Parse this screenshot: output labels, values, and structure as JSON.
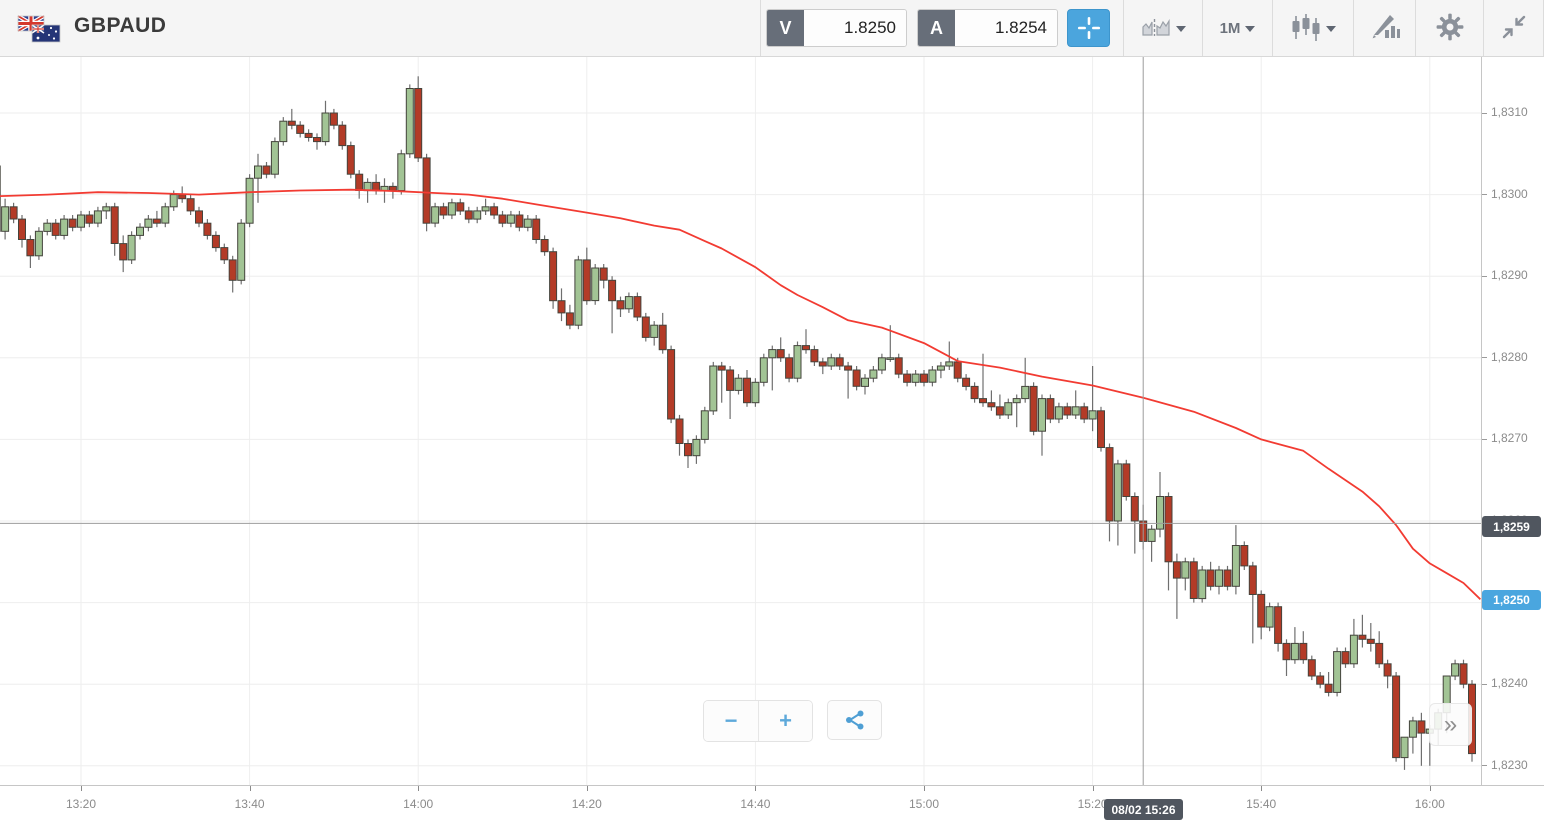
{
  "header": {
    "symbol": "GBPAUD",
    "sell_label": "V",
    "sell_price": "1.8250",
    "buy_label": "A",
    "buy_price": "1.8254",
    "timeframe": "1M"
  },
  "icons": {
    "flag": "uk-australia-flag-icon",
    "crosshair_tool": "crosshair-icon",
    "compare": "compare-charts-icon",
    "timeframe_caret": "chevron-down-icon",
    "chart_type": "candlestick-type-icon",
    "drawing": "drawing-tools-icon",
    "settings": "gear-icon",
    "collapse": "collapse-icon",
    "zoom_out": "minus-icon",
    "zoom_in": "plus-icon",
    "share": "share-icon",
    "jump_latest": "double-chevron-right-icon"
  },
  "controls": {
    "zoom_out_label": "−",
    "zoom_in_label": "+",
    "jump_label": "»"
  },
  "axes": {
    "price_ticks": [
      {
        "label": "1,8310",
        "pips": 110
      },
      {
        "label": "1,8300",
        "pips": 100
      },
      {
        "label": "1,8290",
        "pips": 90
      },
      {
        "label": "1,8280",
        "pips": 80
      },
      {
        "label": "1,8270",
        "pips": 70
      },
      {
        "label": "1,8260",
        "pips": 60
      },
      {
        "label": "1,8250",
        "pips": 50
      },
      {
        "label": "1,8240",
        "pips": 40
      },
      {
        "label": "1,8230",
        "pips": 30
      }
    ],
    "time_ticks": [
      {
        "label": "13:20",
        "minute": 10
      },
      {
        "label": "13:40",
        "minute": 30
      },
      {
        "label": "14:00",
        "minute": 50
      },
      {
        "label": "14:20",
        "minute": 70
      },
      {
        "label": "14:40",
        "minute": 90
      },
      {
        "label": "15:00",
        "minute": 110
      },
      {
        "label": "15:20",
        "minute": 130
      },
      {
        "label": "15:40",
        "minute": 150
      },
      {
        "label": "16:00",
        "minute": 170
      }
    ],
    "crosshair_price_label": "1,8259",
    "last_price_label": "1,8250",
    "crosshair_time_label": "08/02 15:26"
  },
  "chart_data": {
    "type": "candlestick",
    "title": "GBPAUD 1-minute candlestick chart",
    "symbol": "GBPAUD",
    "interval": "1 minute",
    "start_time": "13:10",
    "end_time": "16:05",
    "date": "08/02",
    "price_range": [
      1.823,
      1.831
    ],
    "price_encoding_note": "ohlc values are pips: price = 1.8200 + pips/10000",
    "up_color": "#a2c495",
    "down_color": "#b33b27",
    "ohlc_pips": [
      [
        103.5,
        104.0,
        94.0,
        95.5
      ],
      [
        95.5,
        99.5,
        94.5,
        98.5
      ],
      [
        98.5,
        99.0,
        96.5,
        97.0
      ],
      [
        97.0,
        97.5,
        93.5,
        94.5
      ],
      [
        94.5,
        95.0,
        91.0,
        92.5
      ],
      [
        92.5,
        96.0,
        92.0,
        95.5
      ],
      [
        95.5,
        97.0,
        95.0,
        96.5
      ],
      [
        96.5,
        97.0,
        94.5,
        95.0
      ],
      [
        95.0,
        97.5,
        94.5,
        97.0
      ],
      [
        97.0,
        97.5,
        95.5,
        96.0
      ],
      [
        96.0,
        98.0,
        95.5,
        97.5
      ],
      [
        97.5,
        98.0,
        96.0,
        96.5
      ],
      [
        96.5,
        98.5,
        96.0,
        98.0
      ],
      [
        98.0,
        99.0,
        97.0,
        98.5
      ],
      [
        98.5,
        99.0,
        92.5,
        94.0
      ],
      [
        94.0,
        95.0,
        90.5,
        92.0
      ],
      [
        92.0,
        95.5,
        91.5,
        95.0
      ],
      [
        95.0,
        96.5,
        94.5,
        96.0
      ],
      [
        96.0,
        97.5,
        95.5,
        97.0
      ],
      [
        97.0,
        98.0,
        96.0,
        96.5
      ],
      [
        96.5,
        99.0,
        96.0,
        98.5
      ],
      [
        98.5,
        100.5,
        98.0,
        100.0
      ],
      [
        100.0,
        101.0,
        99.0,
        99.5
      ],
      [
        99.5,
        100.0,
        97.5,
        98.0
      ],
      [
        98.0,
        98.5,
        96.0,
        96.5
      ],
      [
        96.5,
        97.0,
        94.5,
        95.0
      ],
      [
        95.0,
        95.5,
        93.0,
        93.5
      ],
      [
        93.5,
        94.0,
        91.5,
        92.0
      ],
      [
        92.0,
        92.5,
        88.0,
        89.5
      ],
      [
        89.5,
        97.0,
        89.0,
        96.5
      ],
      [
        96.5,
        102.5,
        96.0,
        102.0
      ],
      [
        102.0,
        105.0,
        99.0,
        103.5
      ],
      [
        103.5,
        104.0,
        102.0,
        102.5
      ],
      [
        102.5,
        107.0,
        102.0,
        106.5
      ],
      [
        106.5,
        109.5,
        106.0,
        109.0
      ],
      [
        109.0,
        110.5,
        108.0,
        108.5
      ],
      [
        108.5,
        109.0,
        107.0,
        107.5
      ],
      [
        107.5,
        108.0,
        106.5,
        107.0
      ],
      [
        107.0,
        107.5,
        105.5,
        106.5
      ],
      [
        106.5,
        111.5,
        106.0,
        110.0
      ],
      [
        110.0,
        110.5,
        108.0,
        108.5
      ],
      [
        108.5,
        109.0,
        105.5,
        106.0
      ],
      [
        106.0,
        106.5,
        102.0,
        102.5
      ],
      [
        102.5,
        103.0,
        99.5,
        100.5
      ],
      [
        100.5,
        102.0,
        99.0,
        101.5
      ],
      [
        101.5,
        102.5,
        100.0,
        100.5
      ],
      [
        100.5,
        102.0,
        99.0,
        101.0
      ],
      [
        101.0,
        101.5,
        99.5,
        100.5
      ],
      [
        100.5,
        105.5,
        100.0,
        105.0
      ],
      [
        105.0,
        113.5,
        104.5,
        113.0
      ],
      [
        113.0,
        114.5,
        104.0,
        104.5
      ],
      [
        104.5,
        105.0,
        95.5,
        96.5
      ],
      [
        96.5,
        99.0,
        96.0,
        98.5
      ],
      [
        98.5,
        99.0,
        97.0,
        97.5
      ],
      [
        97.5,
        99.5,
        97.0,
        99.0
      ],
      [
        99.0,
        99.5,
        97.5,
        98.0
      ],
      [
        98.0,
        98.5,
        96.5,
        97.0
      ],
      [
        97.0,
        98.5,
        96.5,
        98.0
      ],
      [
        98.0,
        99.5,
        97.5,
        98.5
      ],
      [
        98.5,
        99.0,
        97.0,
        97.5
      ],
      [
        97.5,
        98.0,
        96.0,
        96.5
      ],
      [
        96.5,
        98.0,
        96.0,
        97.5
      ],
      [
        97.5,
        98.0,
        95.5,
        96.0
      ],
      [
        96.0,
        97.5,
        95.5,
        97.0
      ],
      [
        97.0,
        97.5,
        94.0,
        94.5
      ],
      [
        94.5,
        95.0,
        92.5,
        93.0
      ],
      [
        93.0,
        93.5,
        86.0,
        87.0
      ],
      [
        87.0,
        88.5,
        84.5,
        85.5
      ],
      [
        85.5,
        86.5,
        83.5,
        84.0
      ],
      [
        84.0,
        92.5,
        83.5,
        92.0
      ],
      [
        92.0,
        93.5,
        86.5,
        87.0
      ],
      [
        87.0,
        91.5,
        86.5,
        91.0
      ],
      [
        91.0,
        91.5,
        88.5,
        89.5
      ],
      [
        89.5,
        90.0,
        83.0,
        87.0
      ],
      [
        87.0,
        87.5,
        85.0,
        86.0
      ],
      [
        86.0,
        88.0,
        85.5,
        87.5
      ],
      [
        87.5,
        88.0,
        84.5,
        85.0
      ],
      [
        85.0,
        85.5,
        82.0,
        82.5
      ],
      [
        82.5,
        84.5,
        81.5,
        84.0
      ],
      [
        84.0,
        85.5,
        80.5,
        81.0
      ],
      [
        81.0,
        81.5,
        72.0,
        72.5
      ],
      [
        72.5,
        73.0,
        68.0,
        69.5
      ],
      [
        69.5,
        70.0,
        66.5,
        68.0
      ],
      [
        68.0,
        70.5,
        67.0,
        70.0
      ],
      [
        70.0,
        74.0,
        69.5,
        73.5
      ],
      [
        73.5,
        79.5,
        73.0,
        79.0
      ],
      [
        79.0,
        79.5,
        74.5,
        78.5
      ],
      [
        78.5,
        79.0,
        72.5,
        76.0
      ],
      [
        76.0,
        78.0,
        75.5,
        77.5
      ],
      [
        77.5,
        78.5,
        74.0,
        74.5
      ],
      [
        74.5,
        77.5,
        74.0,
        77.0
      ],
      [
        77.0,
        80.5,
        76.5,
        80.0
      ],
      [
        80.0,
        81.5,
        76.0,
        81.0
      ],
      [
        81.0,
        82.5,
        79.5,
        80.0
      ],
      [
        80.0,
        80.5,
        77.0,
        77.5
      ],
      [
        77.5,
        82.0,
        77.0,
        81.5
      ],
      [
        81.5,
        83.5,
        80.5,
        81.0
      ],
      [
        81.0,
        81.5,
        79.0,
        79.5
      ],
      [
        79.5,
        80.0,
        78.0,
        79.0
      ],
      [
        79.0,
        80.5,
        78.5,
        80.0
      ],
      [
        80.0,
        80.5,
        78.5,
        79.0
      ],
      [
        79.0,
        79.5,
        75.0,
        78.5
      ],
      [
        78.5,
        79.0,
        76.0,
        76.5
      ],
      [
        76.5,
        78.0,
        75.5,
        77.5
      ],
      [
        77.5,
        79.0,
        77.0,
        78.5
      ],
      [
        78.5,
        80.5,
        78.0,
        80.0
      ],
      [
        80.0,
        84.0,
        79.5,
        80.0
      ],
      [
        80.0,
        80.5,
        77.5,
        78.0
      ],
      [
        78.0,
        78.5,
        76.5,
        77.0
      ],
      [
        77.0,
        78.5,
        76.5,
        78.0
      ],
      [
        78.0,
        78.5,
        76.5,
        77.0
      ],
      [
        77.0,
        79.0,
        76.5,
        78.5
      ],
      [
        78.5,
        79.5,
        77.5,
        79.0
      ],
      [
        79.0,
        82.0,
        78.5,
        79.5
      ],
      [
        79.5,
        80.0,
        77.0,
        77.5
      ],
      [
        77.5,
        78.0,
        76.0,
        76.5
      ],
      [
        76.5,
        77.0,
        74.5,
        75.0
      ],
      [
        75.0,
        80.5,
        74.0,
        74.5
      ],
      [
        74.5,
        76.0,
        73.5,
        74.0
      ],
      [
        74.0,
        75.5,
        72.5,
        73.0
      ],
      [
        73.0,
        75.0,
        72.5,
        74.5
      ],
      [
        74.5,
        75.5,
        71.5,
        75.0
      ],
      [
        75.0,
        80.0,
        74.5,
        76.5
      ],
      [
        76.5,
        77.0,
        70.5,
        71.0
      ],
      [
        71.0,
        75.5,
        68.0,
        75.0
      ],
      [
        75.0,
        75.5,
        72.0,
        72.5
      ],
      [
        72.5,
        74.5,
        72.0,
        74.0
      ],
      [
        74.0,
        74.5,
        72.5,
        73.0
      ],
      [
        73.0,
        76.0,
        72.5,
        74.0
      ],
      [
        74.0,
        74.5,
        72.0,
        72.5
      ],
      [
        72.5,
        79.0,
        71.0,
        73.5
      ],
      [
        73.5,
        74.0,
        68.5,
        69.0
      ],
      [
        69.0,
        69.5,
        57.5,
        60.0
      ],
      [
        60.0,
        67.5,
        57.0,
        67.0
      ],
      [
        67.0,
        67.5,
        62.5,
        63.0
      ],
      [
        63.0,
        63.5,
        56.0,
        60.0
      ],
      [
        60.0,
        62.0,
        56.5,
        57.5
      ],
      [
        57.5,
        59.5,
        55.0,
        59.0
      ],
      [
        59.0,
        66.0,
        58.0,
        63.0
      ],
      [
        63.0,
        63.5,
        51.5,
        55.0
      ],
      [
        55.0,
        56.0,
        48.0,
        53.0
      ],
      [
        53.0,
        55.5,
        51.5,
        55.0
      ],
      [
        55.0,
        55.5,
        50.0,
        50.5
      ],
      [
        50.5,
        54.5,
        50.0,
        54.0
      ],
      [
        54.0,
        55.0,
        51.5,
        52.0
      ],
      [
        52.0,
        54.5,
        51.0,
        54.0
      ],
      [
        54.0,
        54.5,
        51.5,
        52.0
      ],
      [
        52.0,
        59.5,
        51.0,
        57.0
      ],
      [
        57.0,
        57.5,
        54.0,
        54.5
      ],
      [
        54.5,
        55.0,
        45.0,
        51.0
      ],
      [
        51.0,
        51.5,
        45.5,
        47.0
      ],
      [
        47.0,
        50.0,
        46.5,
        49.5
      ],
      [
        49.5,
        50.0,
        44.0,
        45.0
      ],
      [
        45.0,
        45.5,
        41.0,
        43.0
      ],
      [
        43.0,
        47.0,
        42.5,
        45.0
      ],
      [
        45.0,
        46.5,
        42.5,
        43.0
      ],
      [
        43.0,
        43.5,
        40.5,
        41.0
      ],
      [
        41.0,
        41.5,
        39.5,
        40.0
      ],
      [
        40.0,
        41.5,
        38.5,
        39.0
      ],
      [
        39.0,
        44.5,
        38.5,
        44.0
      ],
      [
        44.0,
        44.5,
        42.0,
        42.5
      ],
      [
        42.5,
        48.0,
        42.0,
        46.0
      ],
      [
        46.0,
        48.5,
        44.5,
        45.5
      ],
      [
        45.5,
        47.5,
        44.0,
        45.0
      ],
      [
        45.0,
        46.5,
        42.0,
        42.5
      ],
      [
        42.5,
        43.0,
        39.5,
        41.0
      ],
      [
        41.0,
        41.5,
        30.5,
        31.0
      ],
      [
        31.0,
        33.5,
        29.5,
        33.5
      ],
      [
        33.5,
        36.0,
        31.5,
        35.5
      ],
      [
        35.5,
        36.5,
        30.0,
        34.0
      ],
      [
        34.0,
        35.0,
        30.0,
        34.5
      ],
      [
        34.5,
        37.0,
        32.5,
        36.5
      ],
      [
        36.5,
        41.0,
        34.0,
        41.0
      ],
      [
        41.0,
        43.0,
        40.5,
        42.5
      ],
      [
        42.5,
        43.0,
        39.5,
        40.0
      ],
      [
        40.0,
        40.5,
        30.5,
        31.5
      ]
    ],
    "ma_line": {
      "name": "moving average",
      "color": "#f23b32",
      "points_pips": [
        [
          0,
          99.8
        ],
        [
          6,
          100.0
        ],
        [
          12,
          100.3
        ],
        [
          18,
          100.2
        ],
        [
          24,
          100.0
        ],
        [
          30,
          100.3
        ],
        [
          36,
          100.5
        ],
        [
          42,
          100.6
        ],
        [
          48,
          100.4
        ],
        [
          52,
          100.2
        ],
        [
          56,
          100.0
        ],
        [
          60,
          99.5
        ],
        [
          64,
          98.8
        ],
        [
          67,
          98.3
        ],
        [
          70,
          97.8
        ],
        [
          74,
          97.1
        ],
        [
          78,
          96.2
        ],
        [
          81,
          95.7
        ],
        [
          84,
          94.3
        ],
        [
          86,
          93.4
        ],
        [
          90,
          91.1
        ],
        [
          93,
          88.9
        ],
        [
          95,
          87.7
        ],
        [
          98,
          86.2
        ],
        [
          101,
          84.6
        ],
        [
          105,
          83.7
        ],
        [
          110,
          81.8
        ],
        [
          114,
          79.6
        ],
        [
          119,
          78.8
        ],
        [
          124,
          77.7
        ],
        [
          130,
          76.6
        ],
        [
          136,
          75.1
        ],
        [
          142,
          73.4
        ],
        [
          147,
          71.4
        ],
        [
          150,
          70.0
        ],
        [
          155,
          68.6
        ],
        [
          158,
          66.4
        ],
        [
          162,
          63.6
        ],
        [
          164,
          61.8
        ],
        [
          166,
          59.5
        ],
        [
          168,
          56.6
        ],
        [
          170,
          54.8
        ],
        [
          172,
          53.6
        ],
        [
          174,
          52.4
        ],
        [
          176,
          50.4
        ]
      ]
    },
    "crosshair": {
      "time": "08/02 15:26",
      "minute_index": 136,
      "pips": 59.7,
      "price": 1.8259
    },
    "last_price": 1.825,
    "grid": true,
    "legend_position": "none"
  }
}
